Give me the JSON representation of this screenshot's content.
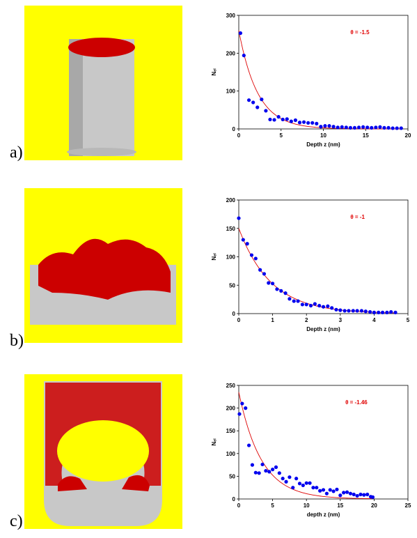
{
  "panels": [
    {
      "label": "a)",
      "colors": {
        "background": "#ffff00",
        "substrate": "#c8c8c8",
        "particles": "#cc0000"
      }
    },
    {
      "label": "b)",
      "colors": {
        "background": "#ffff00",
        "substrate": "#c8c8c8",
        "particles": "#cc0000"
      }
    },
    {
      "label": "c)",
      "colors": {
        "background": "#ffff00",
        "substrate": "#c8c8c8",
        "particles": "#cc0000"
      }
    }
  ],
  "chart_data": [
    {
      "type": "scatter",
      "xlabel": "Depth z (nm)",
      "ylabel": "Nₑₗ",
      "xlim": [
        0,
        20
      ],
      "ylim": [
        0,
        300
      ],
      "xticks": [
        0,
        5,
        10,
        15,
        20
      ],
      "yticks": [
        0,
        100,
        200,
        300
      ],
      "annotation": "θ = -1.5",
      "colors": {
        "points": "#0000ee",
        "fit": "#dd0000"
      },
      "fit": {
        "type": "exponential",
        "a": 260,
        "k": 0.45
      },
      "series": [
        {
          "x": [
            0.2,
            0.6,
            1.2,
            1.7,
            2.2,
            2.7,
            3.2,
            3.7,
            4.2,
            4.7,
            5.2,
            5.7,
            6.2,
            6.7,
            7.2,
            7.7,
            8.2,
            8.7,
            9.2,
            9.7,
            10.2,
            10.7,
            11.2,
            11.7,
            12.2,
            12.7,
            13.2,
            13.7,
            14.2,
            14.7,
            15.2,
            15.7,
            16.2,
            16.7,
            17.2,
            17.7,
            18.2,
            18.7,
            19.2
          ],
          "y": [
            253,
            194,
            76,
            70,
            57,
            78,
            48,
            25,
            24,
            32,
            25,
            26,
            20,
            23,
            17,
            18,
            16,
            16,
            14,
            6,
            8,
            8,
            6,
            4,
            5,
            4,
            3,
            3,
            4,
            5,
            4,
            3,
            4,
            5,
            3,
            3,
            2,
            2,
            2
          ]
        }
      ]
    },
    {
      "type": "scatter",
      "xlabel": "Depth z (nm)",
      "ylabel": "Nₑₗ",
      "xlim": [
        0,
        5
      ],
      "ylim": [
        0,
        200
      ],
      "xticks": [
        0,
        1,
        2,
        3,
        4,
        5
      ],
      "yticks": [
        0,
        50,
        100,
        150,
        200
      ],
      "annotation": "θ = -1",
      "colors": {
        "points": "#0000ee",
        "fit": "#dd0000"
      },
      "fit": {
        "type": "exponential",
        "a": 150,
        "k": 1.05
      },
      "series": [
        {
          "x": [
            0.0,
            0.13,
            0.25,
            0.38,
            0.5,
            0.63,
            0.75,
            0.88,
            1.0,
            1.13,
            1.25,
            1.38,
            1.5,
            1.63,
            1.75,
            1.88,
            2.0,
            2.13,
            2.25,
            2.38,
            2.5,
            2.63,
            2.75,
            2.88,
            3.0,
            3.13,
            3.25,
            3.38,
            3.5,
            3.63,
            3.75,
            3.88,
            4.0,
            4.13,
            4.25,
            4.38,
            4.5,
            4.63
          ],
          "y": [
            168,
            130,
            123,
            103,
            97,
            77,
            70,
            54,
            53,
            43,
            40,
            36,
            26,
            22,
            22,
            16,
            16,
            14,
            17,
            14,
            12,
            13,
            10,
            7,
            6,
            5,
            5,
            5,
            5,
            5,
            4,
            3,
            2,
            2,
            2,
            2,
            3,
            2
          ]
        }
      ]
    },
    {
      "type": "scatter",
      "xlabel": "depth z (nm)",
      "ylabel": "Nₑₗ",
      "xlim": [
        0,
        25
      ],
      "ylim": [
        0,
        250
      ],
      "xticks": [
        0,
        5,
        10,
        15,
        20,
        25
      ],
      "yticks": [
        0,
        50,
        100,
        150,
        200,
        250
      ],
      "annotation": "θ = -1.46",
      "colors": {
        "points": "#0000ee",
        "fit": "#dd0000"
      },
      "fit": {
        "type": "exponential",
        "a": 235,
        "k": 0.3
      },
      "series": [
        {
          "x": [
            0.1,
            0.5,
            1.0,
            1.5,
            2.0,
            2.5,
            3.0,
            3.5,
            4.0,
            4.5,
            5.0,
            5.5,
            6.0,
            6.5,
            7.0,
            7.5,
            8.0,
            8.5,
            9.0,
            9.5,
            10.0,
            10.5,
            11.0,
            11.5,
            12.0,
            12.5,
            13.0,
            13.5,
            14.0,
            14.5,
            15.0,
            15.5,
            16.0,
            16.5,
            17.0,
            17.5,
            18.0,
            18.5,
            19.0,
            19.5,
            19.8
          ],
          "y": [
            187,
            210,
            200,
            118,
            75,
            58,
            57,
            76,
            62,
            60,
            65,
            70,
            57,
            45,
            38,
            48,
            25,
            45,
            34,
            30,
            35,
            35,
            25,
            25,
            18,
            20,
            12,
            20,
            17,
            21,
            8,
            14,
            15,
            12,
            10,
            7,
            10,
            9,
            10,
            5,
            4
          ]
        }
      ]
    }
  ]
}
